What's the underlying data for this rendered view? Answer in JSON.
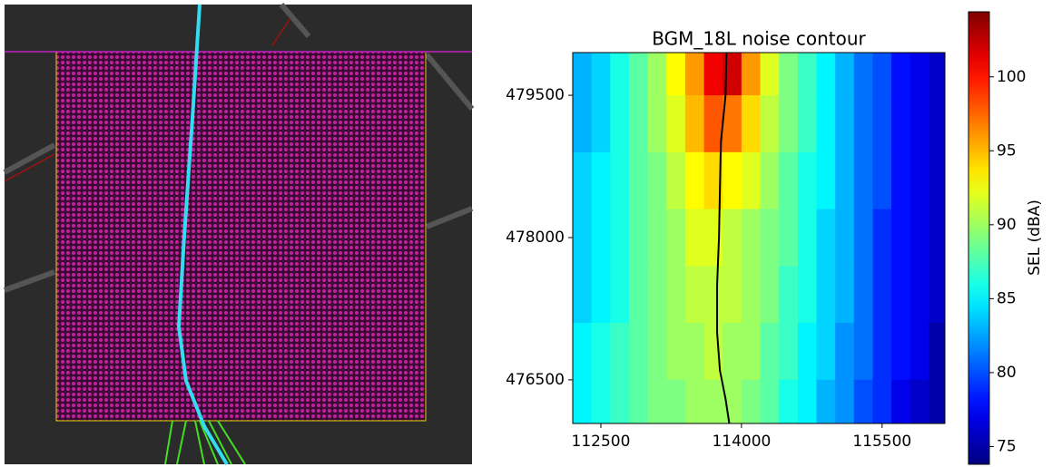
{
  "chart_data": {
    "type": "heatmap",
    "title": "BGM_18L noise contour",
    "x": [
      112300,
      112500,
      112700,
      112900,
      113100,
      113300,
      113500,
      113700,
      113900,
      114100,
      114300,
      114500,
      114700,
      114900,
      115100,
      115300,
      115500,
      115700,
      115900,
      116100
    ],
    "y": [
      479800,
      479200,
      478600,
      478000,
      477400,
      476800,
      476200
    ],
    "z": [
      [
        83,
        84,
        86,
        88,
        90,
        93,
        96,
        101,
        102,
        96,
        92,
        89,
        87,
        85,
        83,
        81,
        80,
        78,
        77,
        76
      ],
      [
        83,
        84,
        86,
        88,
        90,
        92,
        95,
        98,
        97,
        94,
        91,
        89,
        87,
        85,
        83,
        81,
        80,
        78,
        77,
        76
      ],
      [
        84,
        85,
        86,
        88,
        89,
        91,
        93,
        94,
        93,
        92,
        90,
        88,
        86,
        85,
        83,
        81,
        80,
        78,
        77,
        76
      ],
      [
        84,
        85,
        86,
        88,
        89,
        90,
        92,
        92,
        91,
        90,
        89,
        88,
        86,
        84,
        83,
        81,
        79,
        78,
        77,
        76
      ],
      [
        84,
        85,
        86,
        88,
        89,
        90,
        91,
        91,
        91,
        90,
        89,
        87,
        86,
        84,
        83,
        81,
        79,
        78,
        77,
        76
      ],
      [
        85,
        86,
        87,
        88,
        89,
        90,
        90,
        91,
        90,
        90,
        88,
        87,
        85,
        84,
        82,
        81,
        79,
        78,
        77,
        75
      ],
      [
        85,
        86,
        87,
        88,
        89,
        89,
        90,
        90,
        90,
        89,
        88,
        86,
        85,
        83,
        82,
        80,
        79,
        77,
        76,
        75
      ]
    ],
    "xlim": [
      112200,
      116170
    ],
    "ylim": [
      476040,
      479950
    ],
    "xticks": [
      112500,
      114000,
      115500
    ],
    "yticks": [
      476500,
      478000,
      479500
    ],
    "colorbar": {
      "label": "SEL (dBA)",
      "lim": [
        73.8,
        104.4
      ],
      "ticks": [
        75,
        80,
        85,
        90,
        95,
        100
      ]
    },
    "track": {
      "color": "#000000",
      "x": [
        113840,
        113830,
        113780,
        113770,
        113760,
        113740,
        113740,
        113770,
        113830,
        113870
      ],
      "y": [
        479950,
        479500,
        479000,
        478500,
        478000,
        477500,
        477000,
        476600,
        476300,
        476040
      ]
    }
  }
}
